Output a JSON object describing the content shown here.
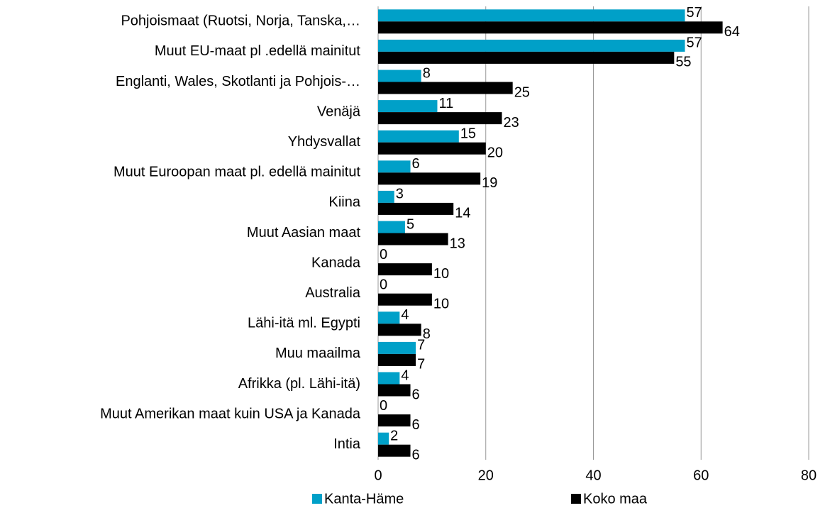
{
  "chart_data": {
    "type": "bar",
    "orientation": "horizontal",
    "categories": [
      "Pohjoismaat (Ruotsi, Norja, Tanska,…",
      "Muut EU-maat pl .edellä mainitut",
      "Englanti, Wales, Skotlanti ja Pohjois-…",
      "Venäjä",
      "Yhdysvallat",
      "Muut Euroopan maat pl. edellä mainitut",
      "Kiina",
      "Muut Aasian maat",
      "Kanada",
      "Australia",
      "Lähi-itä ml. Egypti",
      "Muu maailma",
      "Afrikka (pl. Lähi-itä)",
      "Muut Amerikan maat kuin USA ja Kanada",
      "Intia"
    ],
    "series": [
      {
        "name": "Kanta-Häme",
        "color": "#00a0c8",
        "values": [
          57,
          57,
          8,
          11,
          15,
          6,
          3,
          5,
          0,
          0,
          4,
          7,
          4,
          0,
          2
        ]
      },
      {
        "name": "Koko maa",
        "color": "#000000",
        "values": [
          64,
          55,
          25,
          23,
          20,
          19,
          14,
          13,
          10,
          10,
          8,
          7,
          6,
          6,
          6
        ]
      }
    ],
    "xlim": [
      0,
      80
    ],
    "xticks": [
      0,
      20,
      40,
      60,
      80
    ],
    "grid": true,
    "legend": "bottom"
  }
}
